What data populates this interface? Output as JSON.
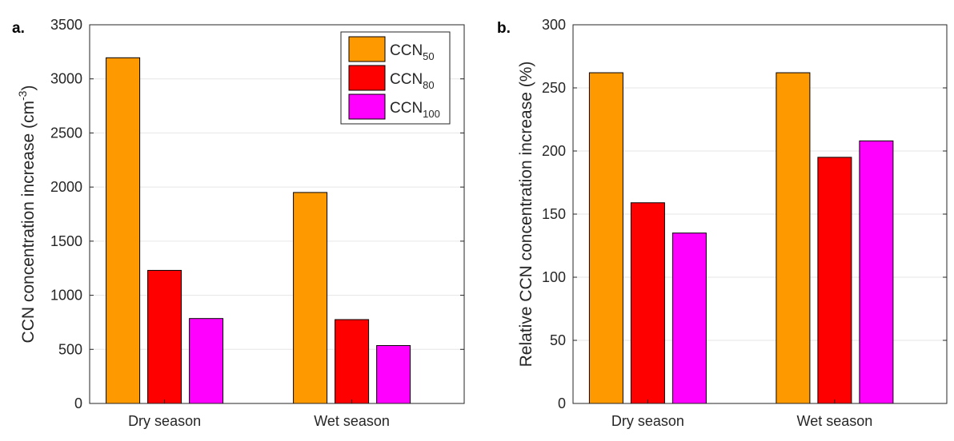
{
  "chart_data": [
    {
      "type": "bar",
      "panel_label": "a.",
      "categories": [
        "Dry season",
        "Wet season"
      ],
      "series": [
        {
          "name": "CCN50",
          "label_main": "CCN",
          "label_sub": "50",
          "color": "#FF9900",
          "values": [
            3195,
            1950
          ]
        },
        {
          "name": "CCN80",
          "label_main": "CCN",
          "label_sub": "80",
          "color": "#FF0000",
          "values": [
            1230,
            775
          ]
        },
        {
          "name": "CCN100",
          "label_main": "CCN",
          "label_sub": "100",
          "color": "#FF00FF",
          "values": [
            785,
            535
          ]
        }
      ],
      "ylabel_main": "CCN concentration increase (cm",
      "ylabel_sup": "-3",
      "ylabel_end": ")",
      "ylim": [
        0,
        3500
      ],
      "yticks": [
        0,
        500,
        1000,
        1500,
        2000,
        2500,
        3000,
        3500
      ],
      "grid": true,
      "legend": "top-right"
    },
    {
      "type": "bar",
      "panel_label": "b.",
      "categories": [
        "Dry season",
        "Wet season"
      ],
      "series": [
        {
          "name": "CCN50",
          "color": "#FF9900",
          "values": [
            262,
            262
          ]
        },
        {
          "name": "CCN80",
          "color": "#FF0000",
          "values": [
            159,
            195
          ]
        },
        {
          "name": "CCN100",
          "color": "#FF00FF",
          "values": [
            135,
            208
          ]
        }
      ],
      "ylabel": "Relative CCN concentration increase (%)",
      "ylim": [
        0,
        300
      ],
      "yticks": [
        0,
        50,
        100,
        150,
        200,
        250,
        300
      ],
      "grid": true
    }
  ]
}
